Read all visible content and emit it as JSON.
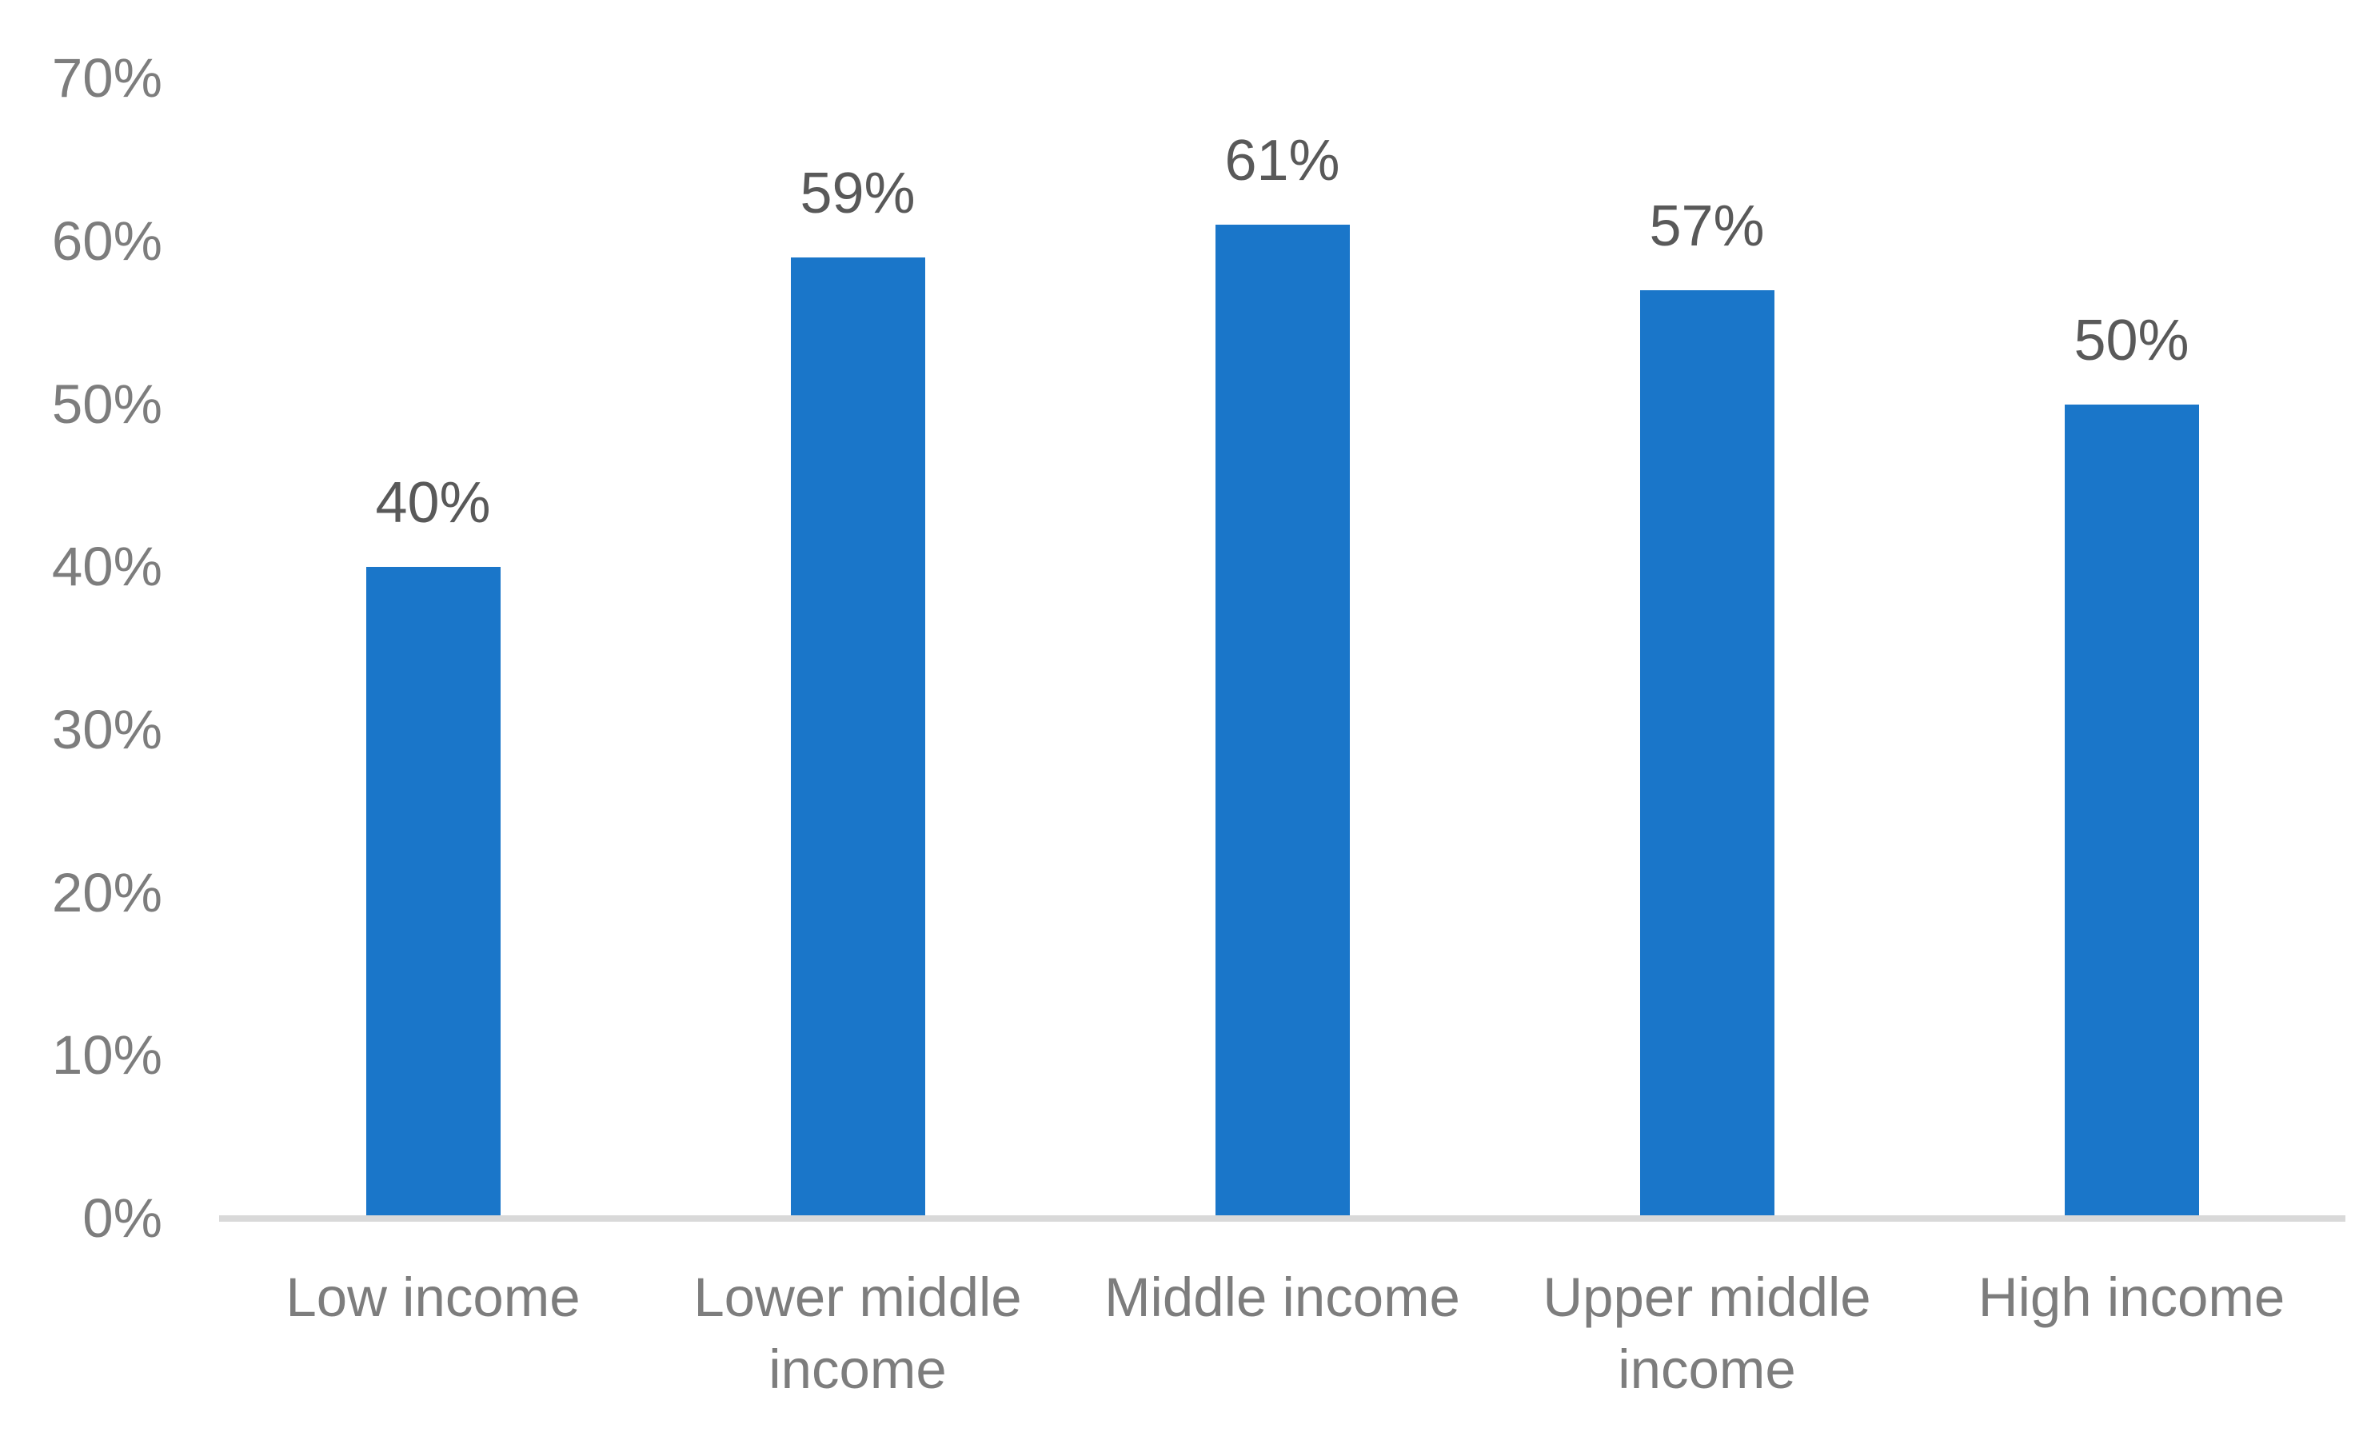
{
  "chart_data": {
    "type": "bar",
    "categories": [
      "Low income",
      "Lower middle income",
      "Middle income",
      "Upper middle income",
      "High income"
    ],
    "values": [
      40,
      59,
      61,
      57,
      50
    ],
    "data_labels": [
      "40%",
      "59%",
      "61%",
      "57%",
      "50%"
    ],
    "y_ticks": [
      "0%",
      "10%",
      "20%",
      "30%",
      "40%",
      "50%",
      "60%",
      "70%"
    ],
    "ylim": [
      0,
      70
    ],
    "title": "",
    "xlabel": "",
    "ylabel": "",
    "grid": false,
    "legend_position": "none",
    "bar_color": "#1a76c9",
    "axis_line_color": "#d9d9d9",
    "axis_label_color": "#7d7d7d",
    "data_label_color": "#595959"
  }
}
